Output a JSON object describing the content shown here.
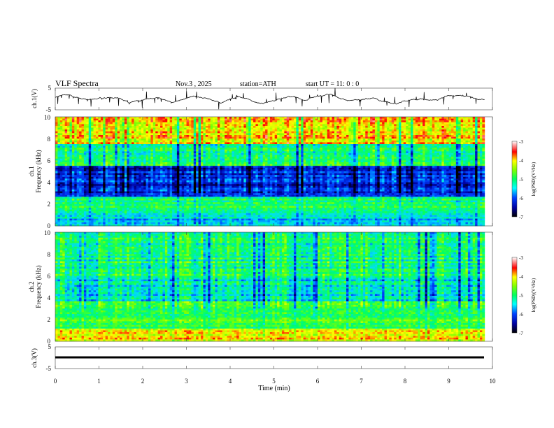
{
  "header": {
    "title": "VLF  Spectra",
    "date": "Nov.3  , 2025",
    "station": "station=ATH",
    "start_ut": "start  UT  =    11: 0   : 0"
  },
  "chart_data": {
    "type": "spectrogram",
    "x_axis": {
      "label": "Time  (min)",
      "range": [
        0,
        10
      ],
      "ticks": [
        0,
        1,
        2,
        3,
        4,
        5,
        6,
        7,
        8,
        9,
        10
      ],
      "tick_labels": [
        "0",
        "1",
        "2",
        "3",
        "4",
        "5",
        "6",
        "7",
        "8",
        "9",
        "10"
      ]
    },
    "panels": [
      {
        "id": "ch1-waveform",
        "type": "line",
        "ylabel": "ch.1(V)",
        "ylim": [
          -5,
          5
        ],
        "tick_labels": [
          "5",
          "-5"
        ],
        "line_color": "#000000",
        "style": "noisy waveform, mean near 0 V, amplitude about ±2 V"
      },
      {
        "id": "ch1-spectrogram",
        "type": "heatmap",
        "ylabel_top": "ch.1",
        "ylabel": "Frequency  (kHz)",
        "ylim": [
          0,
          10
        ],
        "tick_labels": [
          "0",
          "2",
          "4",
          "6",
          "8",
          "10"
        ],
        "colorbar": {
          "label": "log(PSD)(V²/Hz)",
          "range": [
            -7,
            -3
          ],
          "tick_labels": [
            "-3",
            "-4",
            "-5",
            "-6",
            "-7"
          ]
        },
        "bands_khz": [
          {
            "from": 0,
            "to": 1.2,
            "level": "-5.5"
          },
          {
            "from": 1.2,
            "to": 2.6,
            "level": "-5.0"
          },
          {
            "from": 2.6,
            "to": 5.5,
            "level": "-6.2"
          },
          {
            "from": 5.5,
            "to": 7.5,
            "level": "-5.0"
          },
          {
            "from": 7.5,
            "to": 10,
            "level": "-4.0"
          }
        ]
      },
      {
        "id": "ch2-spectrogram",
        "type": "heatmap",
        "ylabel_top": "ch.2",
        "ylabel": "Frequency  (kHz)",
        "ylim": [
          0,
          10
        ],
        "tick_labels": [
          "0",
          "2",
          "4",
          "6",
          "8",
          "10"
        ],
        "colorbar": {
          "label": "log(PSD)(V²/Hz)",
          "range": [
            -7,
            -3
          ],
          "tick_labels": [
            "-3",
            "-4",
            "-5",
            "-6",
            "-7"
          ]
        },
        "bands_khz": [
          {
            "from": 0,
            "to": 1.2,
            "level": "-4.0"
          },
          {
            "from": 1.2,
            "to": 3.6,
            "level": "-4.8"
          },
          {
            "from": 3.6,
            "to": 6.0,
            "level": "-5.3"
          },
          {
            "from": 6.0,
            "to": 10,
            "level": "-5.0"
          }
        ]
      },
      {
        "id": "ch3-waveform",
        "type": "line",
        "ylabel": "ch.3(V)",
        "ylim": [
          -5,
          5
        ],
        "tick_labels": [
          "5",
          "-5"
        ],
        "line_color": "#000000",
        "style": "flat thick trace near -1 V"
      }
    ]
  }
}
